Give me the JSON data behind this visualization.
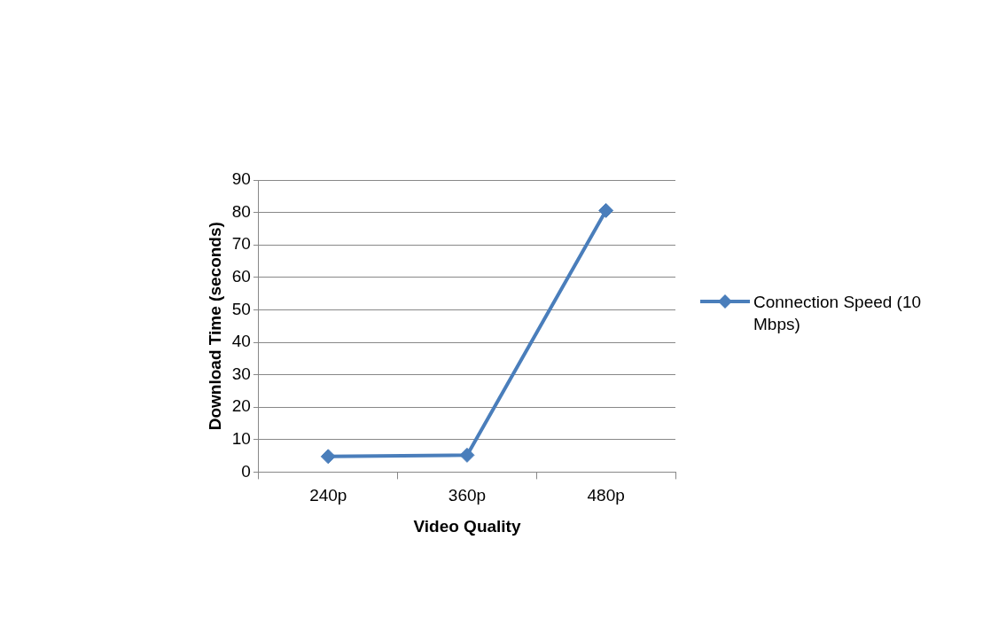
{
  "chart_data": {
    "type": "line",
    "xlabel": "Video Quality",
    "ylabel": "Download Time (seconds)",
    "categories": [
      "240p",
      "360p",
      "480p"
    ],
    "series": [
      {
        "name": "Connection Speed (10 Mbps)",
        "color": "#4a7ebb",
        "values": [
          4.8,
          5.2,
          80.6
        ]
      }
    ],
    "ylim": [
      0,
      90
    ],
    "yticks": [
      0,
      10,
      20,
      30,
      40,
      50,
      60,
      70,
      80,
      90
    ],
    "grid": "y",
    "legend": "right",
    "marker": "diamond",
    "line_style": "solid"
  }
}
